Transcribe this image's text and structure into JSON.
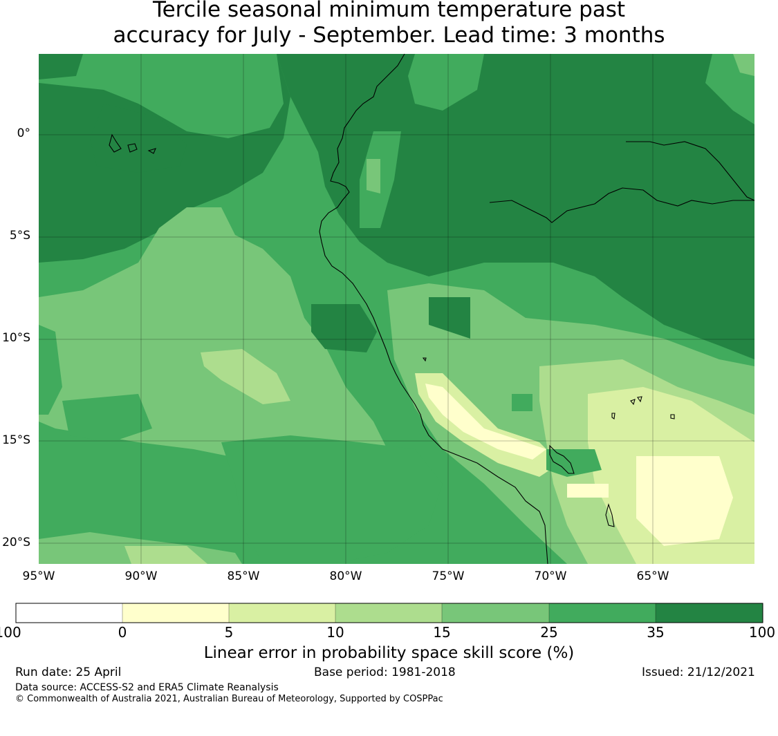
{
  "title": {
    "line1": "Tercile seasonal minimum temperature past",
    "line2": "accuracy for July - September. Lead time: 3 months"
  },
  "map": {
    "lat_labels": [
      "0°",
      "5°S",
      "10°S",
      "15°S",
      "20°S"
    ],
    "lon_labels": [
      "95°W",
      "90°W",
      "85°W",
      "80°W",
      "75°W",
      "70°W",
      "65°W"
    ],
    "ocean_base_color": "#41ab5d",
    "land_base_color": "#238443"
  },
  "colorbar": {
    "ticks": [
      "-100",
      "0",
      "5",
      "10",
      "15",
      "25",
      "35",
      "100"
    ],
    "colors": [
      "#ffffff",
      "#ffffcc",
      "#d9f0a3",
      "#addd8e",
      "#78c679",
      "#41ab5d",
      "#238443"
    ],
    "label": "Linear error in probability space skill score (%)"
  },
  "footer": {
    "run_date": "Run date: 25 April",
    "base_period": "Base period: 1981-2018",
    "issued": "Issued: 21/12/2021",
    "data_source": "Data source: ACCESS-S2 and ERA5 Climate Reanalysis",
    "copyright": "© Commonwealth of Australia 2021, Australian Bureau of Meteorology, Supported by COSPPac"
  }
}
